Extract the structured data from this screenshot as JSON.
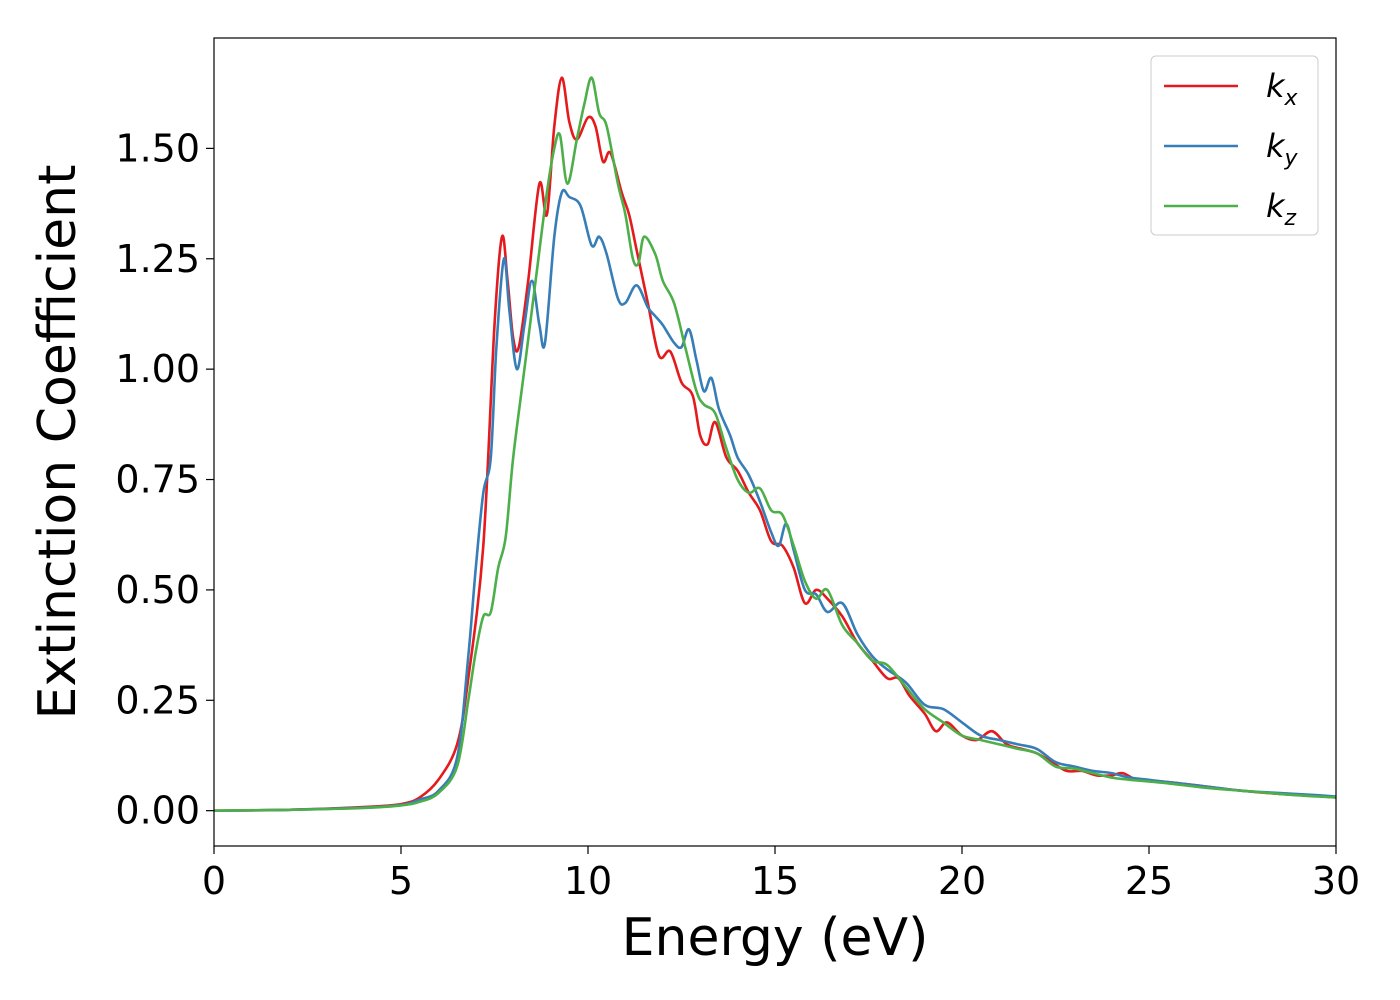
{
  "chart_data": {
    "type": "line",
    "title": "",
    "xlabel": "Energy (eV)",
    "ylabel": "Extinction Coefficient",
    "xlim": [
      0,
      30
    ],
    "ylim": [
      -0.08,
      1.75
    ],
    "xticks": [
      0,
      5,
      10,
      15,
      20,
      25,
      30
    ],
    "xtick_labels": [
      "0",
      "5",
      "10",
      "15",
      "20",
      "25",
      "30"
    ],
    "yticks": [
      0.0,
      0.25,
      0.5,
      0.75,
      1.0,
      1.25,
      1.5
    ],
    "ytick_labels": [
      "0.00",
      "0.25",
      "0.50",
      "0.75",
      "1.00",
      "1.25",
      "1.50"
    ],
    "grid": false,
    "legend_position": "top-right",
    "series": [
      {
        "name": "k",
        "name_sub": "x",
        "color": "#e41a1c",
        "points": [
          [
            0,
            0.0
          ],
          [
            2,
            0.002
          ],
          [
            4,
            0.008
          ],
          [
            5,
            0.015
          ],
          [
            5.5,
            0.03
          ],
          [
            6,
            0.07
          ],
          [
            6.5,
            0.15
          ],
          [
            6.8,
            0.3
          ],
          [
            7.2,
            0.6
          ],
          [
            7.5,
            1.1
          ],
          [
            7.7,
            1.3
          ],
          [
            7.85,
            1.2
          ],
          [
            8.0,
            1.07
          ],
          [
            8.15,
            1.05
          ],
          [
            8.4,
            1.2
          ],
          [
            8.7,
            1.42
          ],
          [
            8.9,
            1.35
          ],
          [
            9.1,
            1.55
          ],
          [
            9.3,
            1.66
          ],
          [
            9.5,
            1.56
          ],
          [
            9.7,
            1.52
          ],
          [
            10.0,
            1.57
          ],
          [
            10.2,
            1.55
          ],
          [
            10.4,
            1.47
          ],
          [
            10.6,
            1.49
          ],
          [
            10.9,
            1.4
          ],
          [
            11.1,
            1.35
          ],
          [
            11.3,
            1.27
          ],
          [
            11.6,
            1.15
          ],
          [
            11.9,
            1.03
          ],
          [
            12.2,
            1.04
          ],
          [
            12.5,
            0.97
          ],
          [
            12.8,
            0.94
          ],
          [
            13.0,
            0.85
          ],
          [
            13.2,
            0.83
          ],
          [
            13.4,
            0.88
          ],
          [
            13.7,
            0.8
          ],
          [
            14.0,
            0.77
          ],
          [
            14.3,
            0.72
          ],
          [
            14.6,
            0.68
          ],
          [
            14.9,
            0.61
          ],
          [
            15.2,
            0.6
          ],
          [
            15.5,
            0.55
          ],
          [
            15.8,
            0.47
          ],
          [
            16.1,
            0.5
          ],
          [
            16.4,
            0.48
          ],
          [
            16.8,
            0.44
          ],
          [
            17.2,
            0.38
          ],
          [
            17.6,
            0.34
          ],
          [
            18.0,
            0.3
          ],
          [
            18.3,
            0.3
          ],
          [
            18.6,
            0.26
          ],
          [
            19.0,
            0.22
          ],
          [
            19.3,
            0.18
          ],
          [
            19.6,
            0.2
          ],
          [
            20.0,
            0.17
          ],
          [
            20.4,
            0.16
          ],
          [
            20.8,
            0.18
          ],
          [
            21.2,
            0.15
          ],
          [
            21.6,
            0.14
          ],
          [
            22.0,
            0.13
          ],
          [
            22.4,
            0.11
          ],
          [
            22.8,
            0.09
          ],
          [
            23.2,
            0.09
          ],
          [
            23.6,
            0.08
          ],
          [
            24.0,
            0.08
          ],
          [
            24.3,
            0.085
          ],
          [
            24.7,
            0.07
          ],
          [
            25.5,
            0.065
          ],
          [
            26.5,
            0.055
          ],
          [
            27.5,
            0.045
          ],
          [
            28.5,
            0.038
          ],
          [
            29.5,
            0.033
          ],
          [
            30.0,
            0.03
          ]
        ]
      },
      {
        "name": "k",
        "name_sub": "y",
        "color": "#377eb8",
        "points": [
          [
            0,
            0.0
          ],
          [
            2,
            0.002
          ],
          [
            4,
            0.007
          ],
          [
            5,
            0.013
          ],
          [
            5.5,
            0.025
          ],
          [
            6,
            0.045
          ],
          [
            6.5,
            0.12
          ],
          [
            6.8,
            0.35
          ],
          [
            7.0,
            0.55
          ],
          [
            7.2,
            0.72
          ],
          [
            7.4,
            0.8
          ],
          [
            7.55,
            1.05
          ],
          [
            7.75,
            1.25
          ],
          [
            7.9,
            1.13
          ],
          [
            8.1,
            1.0
          ],
          [
            8.3,
            1.1
          ],
          [
            8.5,
            1.2
          ],
          [
            8.7,
            1.1
          ],
          [
            8.85,
            1.06
          ],
          [
            9.1,
            1.3
          ],
          [
            9.3,
            1.4
          ],
          [
            9.5,
            1.39
          ],
          [
            9.8,
            1.37
          ],
          [
            10.1,
            1.28
          ],
          [
            10.3,
            1.3
          ],
          [
            10.5,
            1.26
          ],
          [
            10.8,
            1.16
          ],
          [
            11.0,
            1.15
          ],
          [
            11.3,
            1.19
          ],
          [
            11.6,
            1.14
          ],
          [
            11.8,
            1.12
          ],
          [
            12.0,
            1.1
          ],
          [
            12.3,
            1.06
          ],
          [
            12.5,
            1.05
          ],
          [
            12.7,
            1.09
          ],
          [
            12.9,
            1.02
          ],
          [
            13.1,
            0.95
          ],
          [
            13.3,
            0.98
          ],
          [
            13.5,
            0.91
          ],
          [
            13.8,
            0.85
          ],
          [
            14.0,
            0.8
          ],
          [
            14.3,
            0.76
          ],
          [
            14.6,
            0.7
          ],
          [
            14.9,
            0.63
          ],
          [
            15.1,
            0.6
          ],
          [
            15.3,
            0.65
          ],
          [
            15.5,
            0.59
          ],
          [
            15.8,
            0.5
          ],
          [
            16.1,
            0.49
          ],
          [
            16.4,
            0.45
          ],
          [
            16.8,
            0.47
          ],
          [
            17.2,
            0.4
          ],
          [
            17.6,
            0.35
          ],
          [
            18.0,
            0.32
          ],
          [
            18.5,
            0.29
          ],
          [
            19.0,
            0.24
          ],
          [
            19.5,
            0.23
          ],
          [
            20.0,
            0.2
          ],
          [
            20.5,
            0.17
          ],
          [
            21.0,
            0.16
          ],
          [
            21.5,
            0.15
          ],
          [
            22.0,
            0.14
          ],
          [
            22.5,
            0.11
          ],
          [
            23.0,
            0.1
          ],
          [
            23.5,
            0.09
          ],
          [
            24.0,
            0.085
          ],
          [
            24.5,
            0.075
          ],
          [
            25.5,
            0.065
          ],
          [
            26.5,
            0.055
          ],
          [
            27.5,
            0.045
          ],
          [
            28.5,
            0.04
          ],
          [
            29.5,
            0.035
          ],
          [
            30.0,
            0.032
          ]
        ]
      },
      {
        "name": "k",
        "name_sub": "z",
        "color": "#4daf4a",
        "points": [
          [
            0,
            0.0
          ],
          [
            2,
            0.002
          ],
          [
            4,
            0.006
          ],
          [
            5,
            0.012
          ],
          [
            5.5,
            0.02
          ],
          [
            6,
            0.04
          ],
          [
            6.5,
            0.1
          ],
          [
            6.8,
            0.25
          ],
          [
            7.0,
            0.36
          ],
          [
            7.2,
            0.44
          ],
          [
            7.4,
            0.45
          ],
          [
            7.6,
            0.55
          ],
          [
            7.8,
            0.62
          ],
          [
            8.0,
            0.8
          ],
          [
            8.3,
            1.0
          ],
          [
            8.6,
            1.2
          ],
          [
            8.9,
            1.4
          ],
          [
            9.1,
            1.5
          ],
          [
            9.25,
            1.53
          ],
          [
            9.45,
            1.42
          ],
          [
            9.7,
            1.52
          ],
          [
            9.9,
            1.6
          ],
          [
            10.1,
            1.66
          ],
          [
            10.3,
            1.58
          ],
          [
            10.5,
            1.55
          ],
          [
            10.8,
            1.42
          ],
          [
            11.0,
            1.35
          ],
          [
            11.2,
            1.25
          ],
          [
            11.35,
            1.24
          ],
          [
            11.5,
            1.3
          ],
          [
            11.8,
            1.26
          ],
          [
            12.0,
            1.2
          ],
          [
            12.3,
            1.15
          ],
          [
            12.6,
            1.05
          ],
          [
            12.9,
            0.95
          ],
          [
            13.1,
            0.92
          ],
          [
            13.4,
            0.9
          ],
          [
            13.7,
            0.82
          ],
          [
            14.0,
            0.75
          ],
          [
            14.3,
            0.72
          ],
          [
            14.6,
            0.73
          ],
          [
            14.9,
            0.68
          ],
          [
            15.2,
            0.67
          ],
          [
            15.5,
            0.6
          ],
          [
            15.8,
            0.52
          ],
          [
            16.1,
            0.48
          ],
          [
            16.4,
            0.5
          ],
          [
            16.8,
            0.42
          ],
          [
            17.2,
            0.38
          ],
          [
            17.6,
            0.34
          ],
          [
            18.0,
            0.33
          ],
          [
            18.5,
            0.28
          ],
          [
            19.0,
            0.23
          ],
          [
            19.5,
            0.2
          ],
          [
            20.0,
            0.17
          ],
          [
            20.5,
            0.16
          ],
          [
            21.0,
            0.15
          ],
          [
            21.5,
            0.14
          ],
          [
            22.0,
            0.13
          ],
          [
            22.5,
            0.1
          ],
          [
            23.0,
            0.095
          ],
          [
            23.5,
            0.085
          ],
          [
            24.0,
            0.075
          ],
          [
            24.5,
            0.07
          ],
          [
            25.5,
            0.062
          ],
          [
            26.5,
            0.052
          ],
          [
            27.5,
            0.045
          ],
          [
            28.5,
            0.038
          ],
          [
            29.5,
            0.032
          ],
          [
            30.0,
            0.03
          ]
        ]
      }
    ]
  }
}
